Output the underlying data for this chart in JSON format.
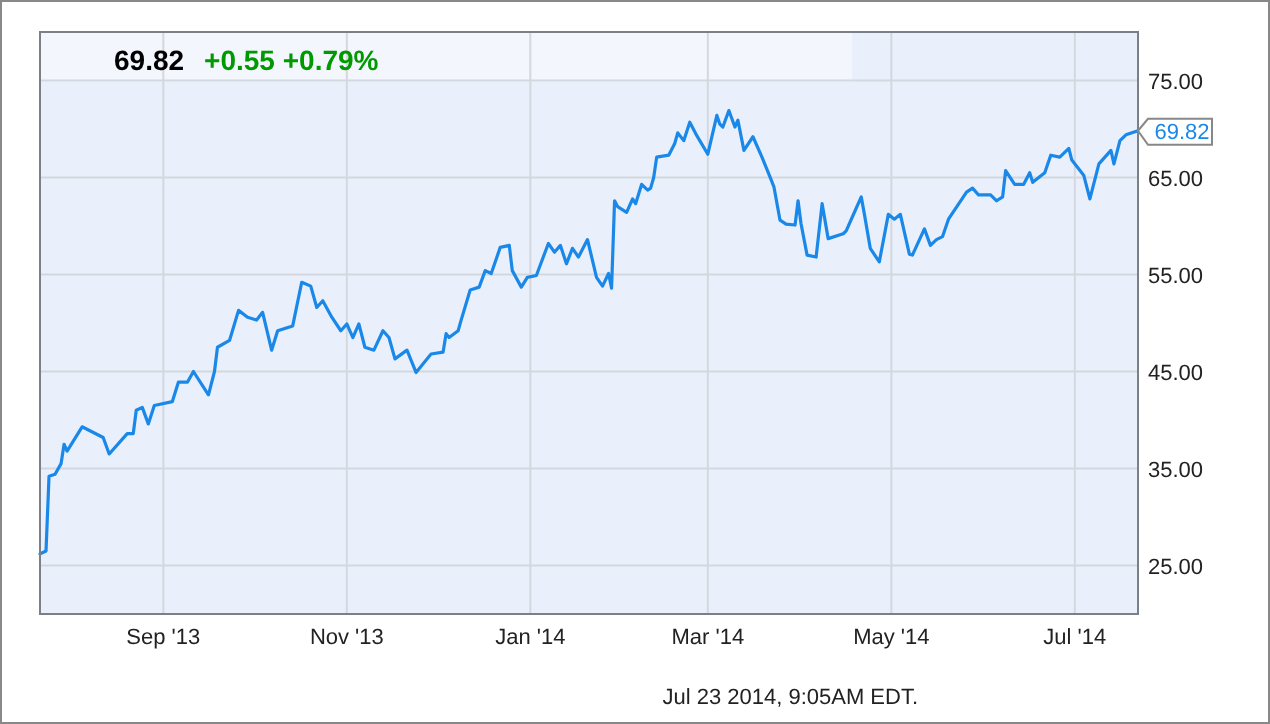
{
  "chart_data": {
    "type": "line",
    "title": "69.82",
    "subtitle": "+0.55 +0.79%",
    "annotations": [
      {
        "text": "69.82",
        "x": "2014-07-22",
        "y": 69.82
      },
      "Jul 23 2014, 9:05AM EDT."
    ],
    "xlim": [
      "2013-07-22",
      "2014-07-22"
    ],
    "xticks": [
      {
        "value": "2013-09-01",
        "label": "Sep '13"
      },
      {
        "value": "2013-11-01",
        "label": "Nov '13"
      },
      {
        "value": "2014-01-01",
        "label": "Jan '14"
      },
      {
        "value": "2014-03-01",
        "label": "Mar '14"
      },
      {
        "value": "2014-05-01",
        "label": "May '14"
      },
      {
        "value": "2014-07-01",
        "label": "Jul '14"
      }
    ],
    "ylim": [
      20,
      80
    ],
    "yticks": [
      {
        "value": 25,
        "label": "25.00"
      },
      {
        "value": 35,
        "label": "35.00"
      },
      {
        "value": 45,
        "label": "45.00"
      },
      {
        "value": 55,
        "label": "55.00"
      },
      {
        "value": 65,
        "label": "65.00"
      },
      {
        "value": 75,
        "label": "75.00"
      }
    ],
    "grid": true,
    "marker": "none",
    "line_style": "solid",
    "series": [
      {
        "color": "#1a88e8",
        "x": [
          "2013-07-22",
          "2013-07-24",
          "2013-07-25",
          "2013-07-27",
          "2013-07-29",
          "2013-07-30",
          "2013-07-31",
          "2013-08-05",
          "2013-08-12",
          "2013-08-14",
          "2013-08-20",
          "2013-08-22",
          "2013-08-23",
          "2013-08-25",
          "2013-08-27",
          "2013-08-29",
          "2013-09-04",
          "2013-09-06",
          "2013-09-09",
          "2013-09-11",
          "2013-09-16",
          "2013-09-18",
          "2013-09-19",
          "2013-09-23",
          "2013-09-26",
          "2013-09-29",
          "2013-10-02",
          "2013-10-04",
          "2013-10-07",
          "2013-10-09",
          "2013-10-14",
          "2013-10-17",
          "2013-10-20",
          "2013-10-22",
          "2013-10-24",
          "2013-10-27",
          "2013-10-30",
          "2013-11-01",
          "2013-11-03",
          "2013-11-05",
          "2013-11-07",
          "2013-11-10",
          "2013-11-13",
          "2013-11-15",
          "2013-11-17",
          "2013-11-21",
          "2013-11-24",
          "2013-11-29",
          "2013-12-03",
          "2013-12-04",
          "2013-12-05",
          "2013-12-08",
          "2013-12-09",
          "2013-12-12",
          "2013-12-15",
          "2013-12-17",
          "2013-12-19",
          "2013-12-22",
          "2013-12-25",
          "2013-12-26",
          "2013-12-29",
          "2013-12-31",
          "2014-01-03",
          "2014-01-07",
          "2014-01-09",
          "2014-01-11",
          "2014-01-13",
          "2014-01-15",
          "2014-01-17",
          "2014-01-20",
          "2014-01-23",
          "2014-01-25",
          "2014-01-27",
          "2014-01-28",
          "2014-01-29",
          "2014-01-30",
          "2014-02-02",
          "2014-02-04",
          "2014-02-05",
          "2014-02-07",
          "2014-02-09",
          "2014-02-10",
          "2014-02-11",
          "2014-02-12",
          "2014-02-16",
          "2014-02-18",
          "2014-02-19",
          "2014-02-21",
          "2014-02-23",
          "2014-02-25",
          "2014-03-01",
          "2014-03-04",
          "2014-03-05",
          "2014-03-06",
          "2014-03-08",
          "2014-03-10",
          "2014-03-11",
          "2014-03-13",
          "2014-03-16",
          "2014-03-19",
          "2014-03-22",
          "2014-03-23",
          "2014-03-25",
          "2014-03-27",
          "2014-03-30",
          "2014-03-31",
          "2014-04-01",
          "2014-04-03",
          "2014-04-06",
          "2014-04-08",
          "2014-04-10",
          "2014-04-15",
          "2014-04-16",
          "2014-04-18",
          "2014-04-21",
          "2014-04-22",
          "2014-04-24",
          "2014-04-27",
          "2014-04-30",
          "2014-05-02",
          "2014-05-04",
          "2014-05-07",
          "2014-05-08",
          "2014-05-12",
          "2014-05-14",
          "2014-05-16",
          "2014-05-18",
          "2014-05-20",
          "2014-05-26",
          "2014-05-28",
          "2014-05-30",
          "2014-06-03",
          "2014-06-05",
          "2014-06-07",
          "2014-06-08",
          "2014-06-11",
          "2014-06-14",
          "2014-06-16",
          "2014-06-17",
          "2014-06-21",
          "2014-06-23",
          "2014-06-26",
          "2014-06-29",
          "2014-06-30",
          "2014-07-04",
          "2014-07-06",
          "2014-07-08",
          "2014-07-09",
          "2014-07-13",
          "2014-07-14",
          "2014-07-16",
          "2014-07-18",
          "2014-07-22"
        ],
        "values": [
          26.2,
          26.5,
          34.2,
          34.4,
          35.5,
          37.5,
          36.8,
          39.3,
          38.2,
          36.5,
          38.6,
          38.6,
          41,
          41.3,
          39.6,
          41.5,
          41.9,
          43.9,
          43.9,
          45,
          42.6,
          45,
          47.5,
          48.2,
          51.3,
          50.6,
          50.3,
          51.1,
          47.2,
          49.2,
          49.7,
          54.2,
          53.8,
          51.6,
          52.3,
          50.6,
          49.2,
          49.9,
          48.5,
          49.9,
          47.5,
          47.2,
          49.2,
          48.5,
          46.3,
          47.2,
          44.9,
          46.8,
          47,
          48.9,
          48.5,
          49.2,
          50.3,
          53.4,
          53.7,
          55.4,
          55.1,
          57.8,
          58,
          55.4,
          53.7,
          54.7,
          54.9,
          58.2,
          57.3,
          58,
          56.1,
          57.7,
          56.8,
          58.6,
          54.7,
          53.8,
          55.1,
          53.6,
          62.6,
          62,
          61.4,
          62.8,
          62.3,
          64.3,
          63.7,
          63.9,
          65,
          67.1,
          67.3,
          68.5,
          69.6,
          68.8,
          70.7,
          69.5,
          67.4,
          71.4,
          70.5,
          70.2,
          71.9,
          70.2,
          70.9,
          67.8,
          69.2,
          67.1,
          64.8,
          64,
          60.6,
          60.2,
          60.1,
          62.6,
          60.2,
          57,
          56.8,
          62.3,
          58.7,
          59.2,
          59.5,
          60.9,
          63,
          61.3,
          57.7,
          56.3,
          61.2,
          60.7,
          61.2,
          57.1,
          57,
          59.7,
          58,
          58.6,
          58.9,
          60.7,
          63.5,
          63.9,
          63.2,
          63.2,
          62.6,
          63,
          65.7,
          64.3,
          64.3,
          65.5,
          64.5,
          65.5,
          67.3,
          67.1,
          68,
          66.8,
          65.2,
          62.8,
          65.2,
          66.4,
          67.8,
          66.4,
          68.8,
          69.4,
          69.82
        ]
      }
    ]
  }
}
